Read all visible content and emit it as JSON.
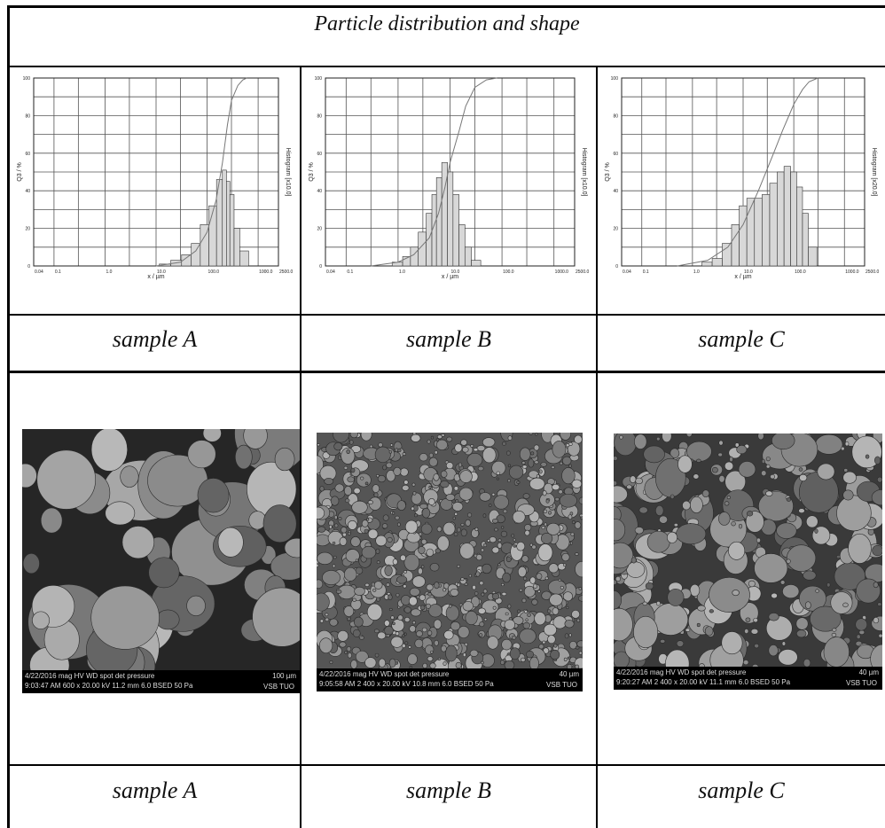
{
  "table": {
    "title": "Particle distribution and shape",
    "row1_captions": [
      "sample A",
      "sample B",
      "sample C"
    ],
    "row2_captions": [
      "sample A",
      "sample B",
      "sample C"
    ]
  },
  "chart_data": [
    {
      "type": "bar",
      "name": "sample A",
      "xlabel": "x / µm",
      "ylabel": "Q3 / %",
      "y2label": "Histogram [x10.0]",
      "xscale": "log",
      "xlim": [
        0.04,
        2500
      ],
      "xticks": [
        "0.04",
        "0.1",
        "1.0",
        "10.0",
        "100.0",
        "1000.0",
        "2500.0"
      ],
      "ylim": [
        0,
        100
      ],
      "yticks": [
        "0",
        "20",
        "40",
        "60",
        "80",
        "100"
      ],
      "grid": true,
      "cumulative_series": {
        "x": [
          10,
          30,
          60,
          100,
          150,
          200,
          250,
          300,
          400,
          500,
          600
        ],
        "y": [
          0,
          2,
          8,
          18,
          35,
          55,
          75,
          88,
          96,
          99,
          100
        ]
      },
      "histogram": {
        "x": [
          15,
          25,
          40,
          60,
          90,
          130,
          180,
          220,
          260,
          300,
          380,
          500
        ],
        "y": [
          1,
          3,
          6,
          12,
          22,
          32,
          46,
          51,
          45,
          38,
          20,
          8
        ]
      }
    },
    {
      "type": "bar",
      "name": "sample B",
      "xlabel": "x / µm",
      "ylabel": "Q3 / %",
      "y2label": "Histogram [x10.0]",
      "xscale": "log",
      "xlim": [
        0.04,
        2500
      ],
      "xticks": [
        "0.04",
        "0.1",
        "1.0",
        "10.0",
        "100.0",
        "1000.0",
        "2500.0"
      ],
      "ylim": [
        0,
        100
      ],
      "yticks": [
        "0",
        "20",
        "40",
        "60",
        "80",
        "100"
      ],
      "grid": true,
      "cumulative_series": {
        "x": [
          0.3,
          1,
          2,
          4,
          6,
          8,
          10,
          15,
          20,
          30,
          50,
          80
        ],
        "y": [
          0,
          2,
          6,
          15,
          28,
          42,
          55,
          72,
          85,
          95,
          99,
          100
        ]
      },
      "histogram": {
        "x": [
          1,
          1.5,
          2,
          3,
          4,
          5,
          6,
          8,
          10,
          13,
          17,
          22,
          30
        ],
        "y": [
          2,
          5,
          10,
          18,
          28,
          38,
          47,
          55,
          50,
          38,
          22,
          10,
          3
        ]
      }
    },
    {
      "type": "bar",
      "name": "sample C",
      "xlabel": "x / µm",
      "ylabel": "Q3 / %",
      "y2label": "Histogram [x20.0]",
      "xscale": "log",
      "xlim": [
        0.04,
        2500
      ],
      "xticks": [
        "0.04",
        "0.1",
        "1.0",
        "10.0",
        "100.0",
        "1000.0",
        "2500.0"
      ],
      "ylim": [
        0,
        100
      ],
      "yticks": [
        "0",
        "20",
        "40",
        "60",
        "80",
        "100"
      ],
      "grid": true,
      "cumulative_series": {
        "x": [
          0.5,
          2,
          5,
          10,
          20,
          40,
          60,
          100,
          150,
          200,
          300
        ],
        "y": [
          0,
          3,
          10,
          22,
          40,
          60,
          72,
          86,
          94,
          98,
          100
        ]
      },
      "histogram": {
        "x": [
          2,
          3,
          5,
          7,
          10,
          14,
          20,
          28,
          40,
          55,
          75,
          100,
          130,
          170,
          220
        ],
        "y": [
          2,
          4,
          12,
          22,
          32,
          36,
          36,
          38,
          44,
          50,
          53,
          50,
          42,
          28,
          10
        ]
      }
    }
  ],
  "sem_images": [
    {
      "date": "4/22/2016",
      "time": "9:03:47 AM",
      "mag": "600 x",
      "hv": "20.00 kV",
      "wd": "11.2 mm",
      "spot": "6.0",
      "det": "BSED",
      "pressure": "50 Pa",
      "scale": "100 µm",
      "brand": "VSB TUO"
    },
    {
      "date": "4/22/2016",
      "time": "9:05:58 AM",
      "mag": "2 400 x",
      "hv": "20.00 kV",
      "wd": "10.8 mm",
      "spot": "6.0",
      "det": "BSED",
      "pressure": "50 Pa",
      "scale": "40 µm",
      "brand": "VSB TUO"
    },
    {
      "date": "4/22/2016",
      "time": "9:20:27 AM",
      "mag": "2 400 x",
      "hv": "20.00 kV",
      "wd": "11.1 mm",
      "spot": "6.0",
      "det": "BSED",
      "pressure": "50 Pa",
      "scale": "40 µm",
      "brand": "VSB TUO"
    }
  ],
  "sem_header": "mag  HV  WD  spot  det  pressure"
}
